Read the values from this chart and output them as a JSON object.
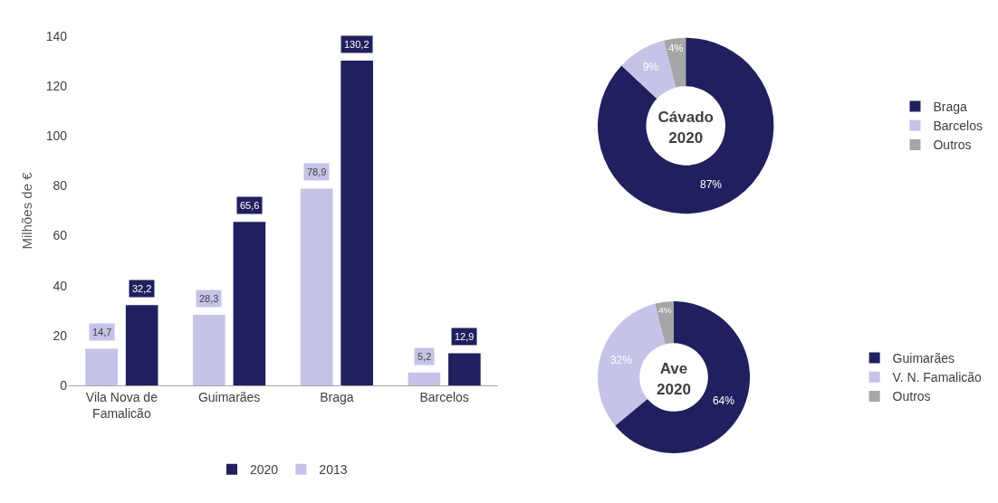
{
  "chart_data": [
    {
      "type": "bar",
      "ylabel": "Milhões de €",
      "categories": [
        "Vila Nova de Famalicão",
        "Guimarães",
        "Braga",
        "Barcelos"
      ],
      "series": [
        {
          "name": "2013",
          "color": "#c5c3e8",
          "values": [
            14.7,
            28.3,
            78.9,
            5.2
          ],
          "value_labels": [
            "14,7",
            "28,3",
            "78,9",
            "5,2"
          ]
        },
        {
          "name": "2020",
          "color": "#21205e",
          "values": [
            32.2,
            65.6,
            130.2,
            12.9
          ],
          "value_labels": [
            "32,2",
            "65,6",
            "130,2",
            "12,9"
          ]
        }
      ],
      "ylim": [
        0,
        140
      ],
      "yticks": [
        0,
        20,
        40,
        60,
        80,
        100,
        120,
        140
      ],
      "grid": false,
      "legend": "bottom"
    },
    {
      "type": "donut",
      "title": "Cávado\n2020",
      "categories": [
        "Braga",
        "Barcelos",
        "Outros"
      ],
      "values": [
        87,
        9,
        4
      ],
      "value_labels": [
        "87%",
        "9%",
        "4%"
      ],
      "colors": [
        "#21205e",
        "#c5c3e8",
        "#a6a6a6"
      ],
      "legend": "right"
    },
    {
      "type": "donut",
      "title": "Ave\n2020",
      "categories": [
        "Guimarães",
        "V. N. Famalicão",
        "Outros"
      ],
      "values": [
        64,
        32,
        4
      ],
      "value_labels": [
        "64%",
        "32%",
        "4%"
      ],
      "colors": [
        "#21205e",
        "#c5c3e8",
        "#a6a6a6"
      ],
      "legend": "right"
    }
  ]
}
